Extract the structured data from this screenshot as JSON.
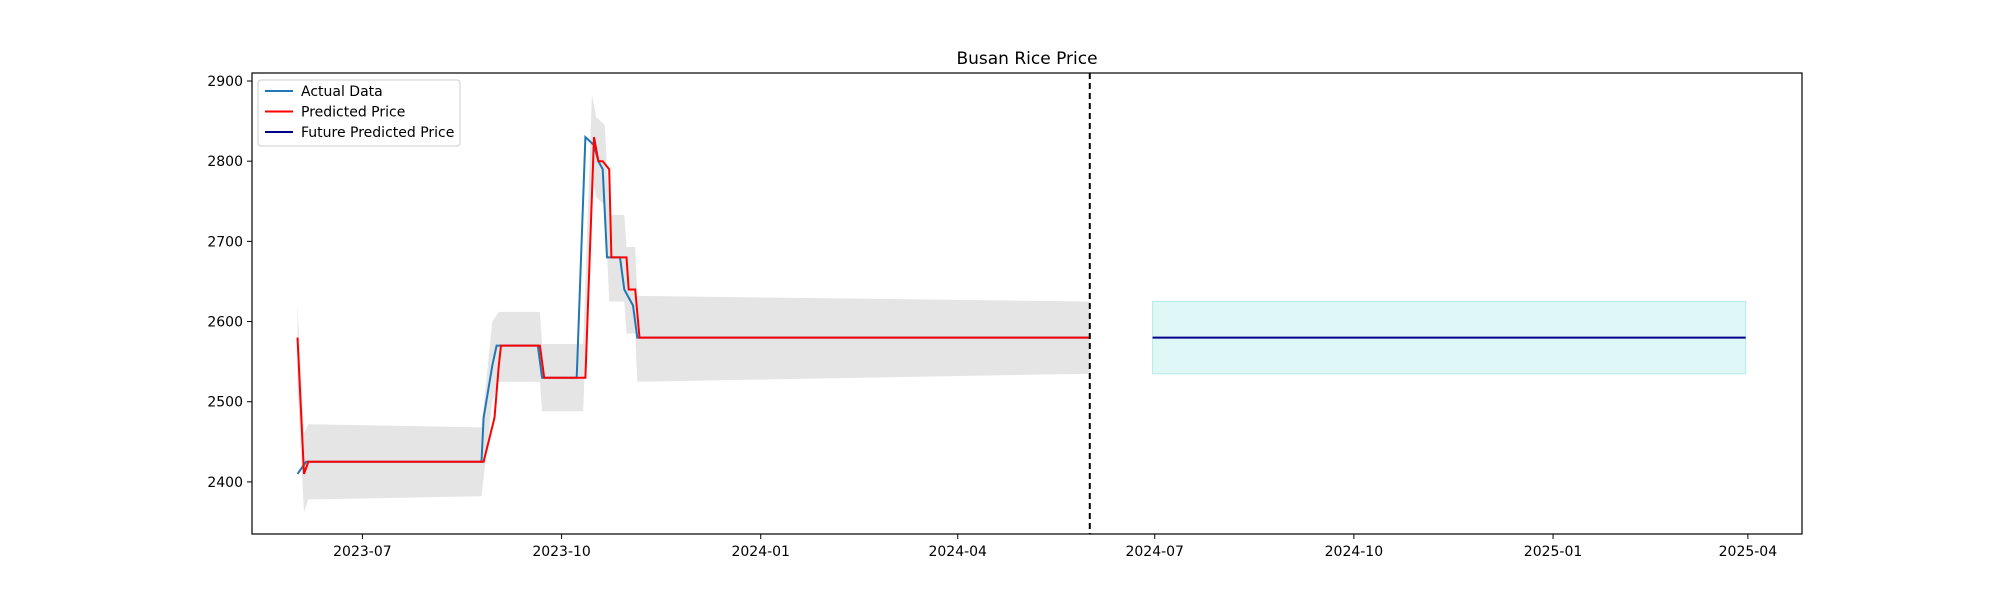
{
  "chart_data": {
    "type": "line",
    "title": "Busan Rice Price",
    "xlabel": "",
    "ylabel": "",
    "x_axis_type": "date",
    "xlim": [
      "2023-05-11",
      "2025-04-26"
    ],
    "ylim": [
      2335,
      2910
    ],
    "x_ticks": [
      "2023-07-01",
      "2023-10-01",
      "2024-01-01",
      "2024-04-01",
      "2024-07-01",
      "2024-10-01",
      "2025-01-01",
      "2025-04-01"
    ],
    "x_tick_labels": [
      "2023-07",
      "2023-10",
      "2024-01",
      "2024-04",
      "2024-07",
      "2024-10",
      "2025-01",
      "2025-04"
    ],
    "y_ticks": [
      2400,
      2500,
      2600,
      2700,
      2800,
      2900
    ],
    "y_tick_labels": [
      "2400",
      "2500",
      "2600",
      "2700",
      "2800",
      "2900"
    ],
    "grid": false,
    "legend_position": "top-left",
    "legend": [
      "Actual Data",
      "Predicted Price",
      "Future Predicted Price"
    ],
    "vertical_line": {
      "x": "2024-06-01",
      "style": "dashed",
      "color": "#000000"
    },
    "series": [
      {
        "name": "Actual Data",
        "color": "#1f77b4",
        "points": [
          [
            "2023-06-01",
            2410
          ],
          [
            "2023-06-05",
            2425
          ],
          [
            "2023-08-25",
            2425
          ],
          [
            "2023-08-26",
            2480
          ],
          [
            "2023-08-30",
            2545
          ],
          [
            "2023-09-01",
            2570
          ],
          [
            "2023-09-20",
            2570
          ],
          [
            "2023-09-22",
            2530
          ],
          [
            "2023-10-08",
            2530
          ],
          [
            "2023-10-12",
            2830
          ],
          [
            "2023-10-16",
            2820
          ],
          [
            "2023-10-18",
            2800
          ],
          [
            "2023-10-20",
            2790
          ],
          [
            "2023-10-22",
            2680
          ],
          [
            "2023-10-28",
            2680
          ],
          [
            "2023-10-30",
            2640
          ],
          [
            "2023-11-03",
            2620
          ],
          [
            "2023-11-05",
            2580
          ],
          [
            "2024-06-01",
            2580
          ]
        ]
      },
      {
        "name": "Predicted Price",
        "color": "#ff0000",
        "points": [
          [
            "2023-06-01",
            2580
          ],
          [
            "2023-06-04",
            2410
          ],
          [
            "2023-06-06",
            2425
          ],
          [
            "2023-08-26",
            2425
          ],
          [
            "2023-08-31",
            2480
          ],
          [
            "2023-09-02",
            2545
          ],
          [
            "2023-09-03",
            2570
          ],
          [
            "2023-09-21",
            2570
          ],
          [
            "2023-09-23",
            2530
          ],
          [
            "2023-10-12",
            2530
          ],
          [
            "2023-10-16",
            2830
          ],
          [
            "2023-10-18",
            2800
          ],
          [
            "2023-10-20",
            2800
          ],
          [
            "2023-10-23",
            2790
          ],
          [
            "2023-10-24",
            2680
          ],
          [
            "2023-10-31",
            2680
          ],
          [
            "2023-11-01",
            2640
          ],
          [
            "2023-11-04",
            2640
          ],
          [
            "2023-11-06",
            2580
          ],
          [
            "2024-06-01",
            2580
          ]
        ]
      },
      {
        "name": "Future Predicted Price",
        "color": "#00008b",
        "points": [
          [
            "2024-06-30",
            2580
          ],
          [
            "2025-03-31",
            2580
          ]
        ]
      }
    ],
    "bands": [
      {
        "color": "#d3d3d3",
        "opacity": 0.6,
        "upper": [
          [
            "2023-06-01",
            2622
          ],
          [
            "2023-06-04",
            2460
          ],
          [
            "2023-06-06",
            2472
          ],
          [
            "2023-08-25",
            2468
          ],
          [
            "2023-08-30",
            2600
          ],
          [
            "2023-09-02",
            2612
          ],
          [
            "2023-09-21",
            2612
          ],
          [
            "2023-09-22",
            2572
          ],
          [
            "2023-10-11",
            2572
          ],
          [
            "2023-10-15",
            2883
          ],
          [
            "2023-10-17",
            2855
          ],
          [
            "2023-10-21",
            2845
          ],
          [
            "2023-10-23",
            2733
          ],
          [
            "2023-10-30",
            2733
          ],
          [
            "2023-10-31",
            2693
          ],
          [
            "2023-11-04",
            2693
          ],
          [
            "2023-11-05",
            2632
          ],
          [
            "2024-06-01",
            2625
          ]
        ],
        "lower": [
          [
            "2024-06-01",
            2535
          ],
          [
            "2023-11-05",
            2525
          ],
          [
            "2023-11-04",
            2585
          ],
          [
            "2023-10-31",
            2585
          ],
          [
            "2023-10-30",
            2625
          ],
          [
            "2023-10-23",
            2625
          ],
          [
            "2023-10-21",
            2745
          ],
          [
            "2023-10-17",
            2755
          ],
          [
            "2023-10-15",
            2782
          ],
          [
            "2023-10-11",
            2488
          ],
          [
            "2023-09-22",
            2488
          ],
          [
            "2023-09-21",
            2525
          ],
          [
            "2023-09-02",
            2525
          ],
          [
            "2023-08-30",
            2500
          ],
          [
            "2023-08-25",
            2382
          ],
          [
            "2023-06-06",
            2378
          ],
          [
            "2023-06-04",
            2362
          ],
          [
            "2023-06-01",
            2520
          ]
        ]
      },
      {
        "color": "#e0f7f7",
        "opacity": 1,
        "stroke": "#b2ebeb",
        "upper": [
          [
            "2024-06-30",
            2625
          ],
          [
            "2025-03-31",
            2625
          ]
        ],
        "lower": [
          [
            "2025-03-31",
            2535
          ],
          [
            "2024-06-30",
            2535
          ]
        ]
      }
    ]
  }
}
